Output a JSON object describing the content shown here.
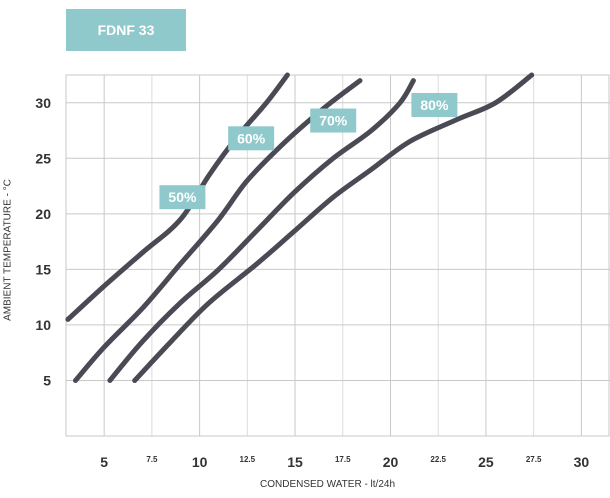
{
  "header": {
    "model_label": "FDNF 33"
  },
  "colors": {
    "badge": "#90c9cc",
    "curve": "#4a4a55",
    "grid_major": "#c9c9c9",
    "grid_minor": "#dcdcdc",
    "plot_border": "#c9c9c9",
    "tick_text": "#333333"
  },
  "chart_data": {
    "type": "line",
    "title": "FDNF 33",
    "xlabel": "CONDENSED WATER - lt/24h",
    "ylabel": "AMBIENT TEMPERATURE - °C",
    "xlim": [
      3,
      31.5
    ],
    "ylim": [
      0,
      32.5
    ],
    "major_x_ticks": [
      5,
      10,
      15,
      20,
      25,
      30
    ],
    "major_x_tick_labels": [
      "5",
      "10",
      "15",
      "20",
      "25",
      "30"
    ],
    "minor_x_ticks": [
      7.5,
      12.5,
      17.5,
      22.5,
      27.5
    ],
    "minor_x_tick_labels": [
      "7.5",
      "12.5",
      "17.5",
      "22.5",
      "27.5"
    ],
    "y_ticks": [
      5,
      10,
      15,
      20,
      25,
      30
    ],
    "y_tick_labels": [
      "5",
      "10",
      "15",
      "20",
      "25",
      "30"
    ],
    "grid": true,
    "series": [
      {
        "name": "50%",
        "label_pos": [
          9.1,
          21.5
        ],
        "points": [
          [
            3.1,
            10.5
          ],
          [
            5,
            13.5
          ],
          [
            7,
            16.5
          ],
          [
            9,
            19.5
          ],
          [
            10.5,
            23.5
          ],
          [
            12,
            27
          ],
          [
            13.5,
            30
          ],
          [
            14.6,
            32.5
          ]
        ]
      },
      {
        "name": "60%",
        "label_pos": [
          12.7,
          26.8
        ],
        "points": [
          [
            3.5,
            5
          ],
          [
            5,
            8
          ],
          [
            7,
            11.5
          ],
          [
            9,
            15.5
          ],
          [
            11,
            19.5
          ],
          [
            12.5,
            23
          ],
          [
            14.5,
            26.5
          ],
          [
            16.5,
            29.5
          ],
          [
            18.4,
            32
          ]
        ]
      },
      {
        "name": "70%",
        "label_pos": [
          17,
          28.4
        ],
        "points": [
          [
            5.3,
            5
          ],
          [
            7,
            8.5
          ],
          [
            9,
            12
          ],
          [
            11,
            15
          ],
          [
            13,
            18.5
          ],
          [
            15,
            22
          ],
          [
            17,
            25
          ],
          [
            19,
            27.5
          ],
          [
            20.5,
            30
          ],
          [
            21.2,
            32
          ]
        ]
      },
      {
        "name": "80%",
        "label_pos": [
          22.3,
          29.8
        ],
        "points": [
          [
            6.6,
            5
          ],
          [
            8.5,
            8.5
          ],
          [
            10.5,
            12
          ],
          [
            13,
            15.5
          ],
          [
            15,
            18.5
          ],
          [
            17,
            21.5
          ],
          [
            19,
            24
          ],
          [
            21,
            26.5
          ],
          [
            23.5,
            28.5
          ],
          [
            25.5,
            30
          ],
          [
            27.4,
            32.5
          ]
        ]
      }
    ]
  }
}
